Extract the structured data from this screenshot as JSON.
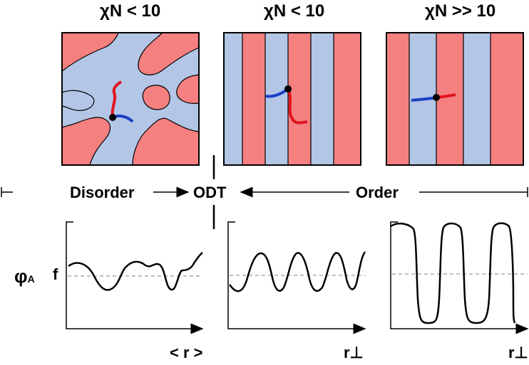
{
  "titles": {
    "left": "χN < 10",
    "middle": "χN < 10",
    "right": "χN >> 10"
  },
  "phases": {
    "disorder": "Disorder",
    "odt": "ODT",
    "order": "Order"
  },
  "plot": {
    "y_symbol": "φ",
    "y_subscript": "A",
    "f_label": "f",
    "x_left": "< r >",
    "x_middle": "r⊥",
    "x_right": "r⊥"
  },
  "colors": {
    "red": "#f58080",
    "blue": "#b3c6e6",
    "chain_red": "#e0141e",
    "chain_blue": "#1a3fc4",
    "border": "#000000",
    "dashed": "#999999"
  }
}
